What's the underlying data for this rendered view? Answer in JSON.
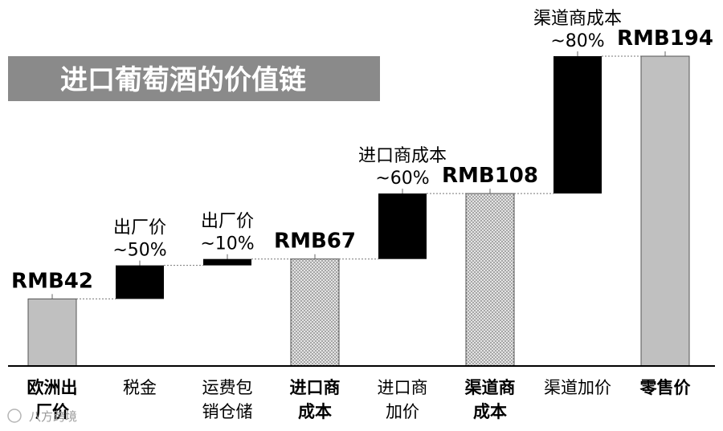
{
  "chart_data": {
    "type": "waterfall",
    "title": "进口葡萄酒的价值链",
    "ylim": [
      0,
      200
    ],
    "categories": [
      {
        "lines": [
          "欧洲出",
          "厂价"
        ],
        "bold": true
      },
      {
        "lines": [
          "税金"
        ],
        "bold": false
      },
      {
        "lines": [
          "运费包",
          "销仓储"
        ],
        "bold": false
      },
      {
        "lines": [
          "进口商",
          "成本"
        ],
        "bold": true
      },
      {
        "lines": [
          "进口商",
          "加价"
        ],
        "bold": false
      },
      {
        "lines": [
          "渠道商",
          "成本"
        ],
        "bold": true
      },
      {
        "lines": [
          "渠道加价"
        ],
        "bold": false
      },
      {
        "lines": [
          "零售价"
        ],
        "bold": true
      }
    ],
    "bars": [
      {
        "kind": "total",
        "start": 0,
        "end": 42,
        "style": "gray",
        "value_label": "RMB42",
        "note": []
      },
      {
        "kind": "delta",
        "start": 42,
        "end": 63,
        "style": "black",
        "value_label": "",
        "note": [
          "出厂价",
          "~50%"
        ]
      },
      {
        "kind": "delta",
        "start": 63,
        "end": 67,
        "style": "black",
        "value_label": "",
        "note": [
          "出厂价",
          "~10%"
        ]
      },
      {
        "kind": "total",
        "start": 0,
        "end": 67,
        "style": "dotted",
        "value_label": "RMB67",
        "note": []
      },
      {
        "kind": "delta",
        "start": 67,
        "end": 108,
        "style": "black",
        "value_label": "",
        "note": [
          "进口商成本",
          "~60%"
        ]
      },
      {
        "kind": "total",
        "start": 0,
        "end": 108,
        "style": "dotted",
        "value_label": "RMB108",
        "note": []
      },
      {
        "kind": "delta",
        "start": 108,
        "end": 194,
        "style": "black",
        "value_label": "",
        "note": [
          "渠道商成本",
          "~80%"
        ]
      },
      {
        "kind": "total",
        "start": 0,
        "end": 194,
        "style": "gray",
        "value_label": "RMB194",
        "note": []
      }
    ],
    "colors": {
      "gray": "#c0c0c0",
      "black": "#000000",
      "title_bg": "#8a8a8a",
      "dotted_fill": "#bdbdbd"
    }
  },
  "watermark": "八方跨境"
}
